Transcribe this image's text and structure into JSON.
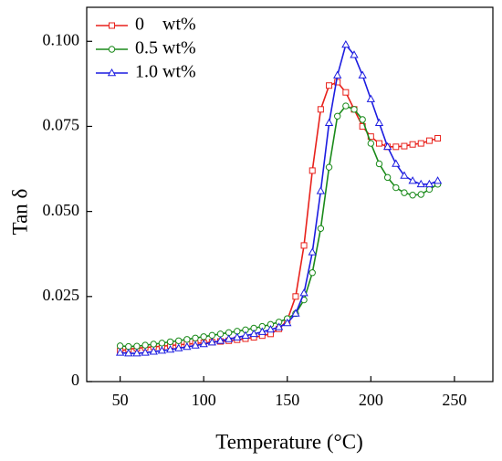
{
  "chart_data": {
    "type": "line",
    "x_label": "Temperature (°C)",
    "y_label": "Tan δ",
    "x": [
      50,
      55,
      60,
      65,
      70,
      75,
      80,
      85,
      90,
      95,
      100,
      105,
      110,
      115,
      120,
      125,
      130,
      135,
      140,
      145,
      150,
      155,
      160,
      165,
      170,
      175,
      180,
      185,
      190,
      195,
      200,
      205,
      210,
      215,
      220,
      225,
      230,
      235,
      240
    ],
    "series": [
      {
        "name": "0    wt%",
        "color": "#e8211b",
        "marker": "square",
        "values": [
          0.009,
          0.0095,
          0.0098,
          0.01,
          0.0102,
          0.0104,
          0.0106,
          0.0108,
          0.011,
          0.0112,
          0.0114,
          0.0116,
          0.0118,
          0.012,
          0.0123,
          0.0126,
          0.013,
          0.0135,
          0.014,
          0.0155,
          0.018,
          0.025,
          0.04,
          0.062,
          0.08,
          0.087,
          0.088,
          0.085,
          0.08,
          0.075,
          0.072,
          0.07,
          0.069,
          0.069,
          0.0692,
          0.0697,
          0.07,
          0.0708,
          0.0715
        ]
      },
      {
        "name": "0.5 wt%",
        "color": "#1a8a1a",
        "marker": "circle",
        "values": [
          0.0105,
          0.0103,
          0.0104,
          0.0107,
          0.011,
          0.0113,
          0.0117,
          0.012,
          0.0124,
          0.0128,
          0.0132,
          0.0136,
          0.014,
          0.0144,
          0.0148,
          0.0152,
          0.0157,
          0.0162,
          0.0168,
          0.0175,
          0.0185,
          0.02,
          0.024,
          0.032,
          0.045,
          0.063,
          0.078,
          0.081,
          0.08,
          0.077,
          0.07,
          0.064,
          0.06,
          0.057,
          0.0555,
          0.0548,
          0.055,
          0.0565,
          0.058
        ]
      },
      {
        "name": "1.0 wt%",
        "color": "#1c1ce0",
        "marker": "triangle",
        "values": [
          0.0085,
          0.0083,
          0.0083,
          0.0085,
          0.0088,
          0.0091,
          0.0094,
          0.0098,
          0.0102,
          0.0106,
          0.011,
          0.0115,
          0.012,
          0.0125,
          0.013,
          0.0135,
          0.014,
          0.0146,
          0.0153,
          0.016,
          0.0172,
          0.02,
          0.026,
          0.038,
          0.056,
          0.076,
          0.09,
          0.099,
          0.096,
          0.09,
          0.083,
          0.076,
          0.069,
          0.064,
          0.0605,
          0.059,
          0.058,
          0.058,
          0.059
        ]
      }
    ],
    "xlim": [
      30,
      273
    ],
    "ylim": [
      0,
      0.11
    ],
    "xticks": [
      50,
      100,
      150,
      200,
      250
    ],
    "yticks": [
      0,
      0.025,
      {
        "value": 0.05,
        "label": "0.050"
      },
      0.075,
      {
        "value": 0.1,
        "label": "0.100"
      }
    ],
    "legend": "upper left",
    "grid": false
  }
}
